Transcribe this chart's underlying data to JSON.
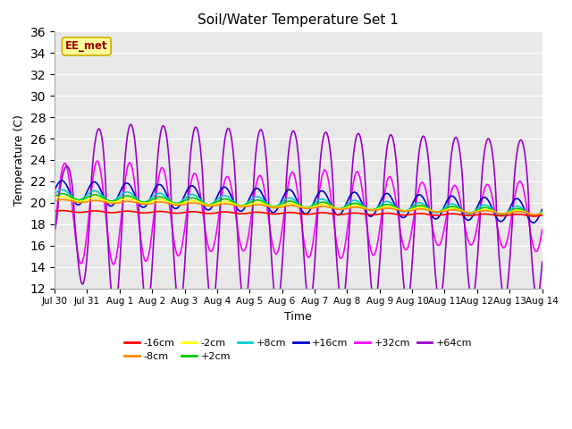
{
  "title": "Soil/Water Temperature Set 1",
  "ylabel": "Temperature (C)",
  "xlabel": "Time",
  "ylim": [
    12,
    36
  ],
  "yticks": [
    12,
    14,
    16,
    18,
    20,
    22,
    24,
    26,
    28,
    30,
    32,
    34,
    36
  ],
  "xtick_labels": [
    "Jul 30",
    "Jul 31",
    "Aug 1",
    "Aug 2",
    "Aug 3",
    "Aug 4",
    "Aug 5",
    "Aug 6",
    "Aug 7",
    "Aug 8",
    "Aug 9",
    "Aug 10",
    "Aug 11",
    "Aug 12",
    "Aug 13",
    "Aug 14"
  ],
  "label_box_text": "EE_met",
  "label_box_facecolor": "#ffff99",
  "label_box_edgecolor": "#ccaa00",
  "label_text_color": "#990000",
  "plot_bg_color": "#e8e8e8",
  "series": [
    {
      "label": "-16cm",
      "color": "#ff0000"
    },
    {
      "label": "-8cm",
      "color": "#ff8800"
    },
    {
      "label": "-2cm",
      "color": "#ffff00"
    },
    {
      "label": "+2cm",
      "color": "#00cc00"
    },
    {
      "label": "+8cm",
      "color": "#00cccc"
    },
    {
      "label": "+16cm",
      "color": "#0000cc"
    },
    {
      "label": "+32cm",
      "color": "#ff00ff"
    },
    {
      "label": "+64cm",
      "color": "#9900cc"
    }
  ]
}
